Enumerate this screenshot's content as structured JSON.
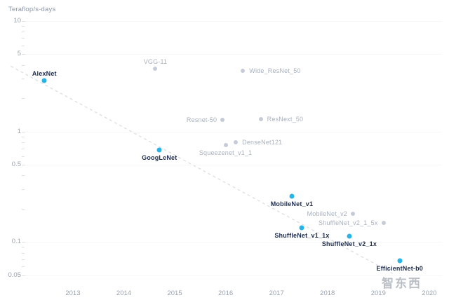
{
  "chart_data": {
    "type": "scatter",
    "title": "",
    "y_title": "Teraflop/s-days",
    "y_scale": "log",
    "grid": "faint-horizontal",
    "legend": "none",
    "xlim": [
      2012.05,
      2020.25
    ],
    "ylim": [
      0.04,
      10
    ],
    "x_ticks": [
      "2013",
      "2014",
      "2015",
      "2016",
      "2017",
      "2018",
      "2019",
      "2020"
    ],
    "x_tick_values": [
      2013,
      2014,
      2015,
      2016,
      2017,
      2018,
      2019,
      2020
    ],
    "y_major_ticks": [
      {
        "value": 10,
        "label": "10"
      },
      {
        "value": 5,
        "label": "5"
      },
      {
        "value": 1,
        "label": "1"
      },
      {
        "value": 0.5,
        "label": "0.5"
      },
      {
        "value": 0.1,
        "label": "0.1"
      },
      {
        "value": 0.05,
        "label": "0.05"
      }
    ],
    "y_minor_ticks": [
      9,
      8,
      7,
      6,
      4,
      3,
      2,
      0.9,
      0.8,
      0.7,
      0.6,
      0.4,
      0.3,
      0.2,
      0.09,
      0.08,
      0.07,
      0.06
    ],
    "trend_line": {
      "x1": 2011.78,
      "y1": 3.9,
      "x2": 2019.28,
      "y2": 0.052,
      "style": "dashed"
    },
    "points": [
      {
        "label": "AlexNet",
        "year": 2012.44,
        "value": 2.9,
        "highlighted": true,
        "label_pos": "above"
      },
      {
        "label": "VGG-11",
        "year": 2014.62,
        "value": 3.7,
        "highlighted": false,
        "label_pos": "above"
      },
      {
        "label": "Wide_ResNet_50",
        "year": 2016.34,
        "value": 3.55,
        "highlighted": false,
        "label_pos": "right"
      },
      {
        "label": "Resnet-50",
        "year": 2015.94,
        "value": 1.28,
        "highlighted": false,
        "label_pos": "left"
      },
      {
        "label": "ResNext_50",
        "year": 2016.69,
        "value": 1.3,
        "highlighted": false,
        "label_pos": "right"
      },
      {
        "label": "Squeezenet_v1_1",
        "year": 2016.0,
        "value": 0.75,
        "highlighted": false,
        "label_pos": "below"
      },
      {
        "label": "DenseNet121",
        "year": 2016.2,
        "value": 0.8,
        "highlighted": false,
        "label_pos": "right"
      },
      {
        "label": "GoogLeNet",
        "year": 2014.7,
        "value": 0.68,
        "highlighted": true,
        "label_pos": "below"
      },
      {
        "label": "MobileNet_v1",
        "year": 2017.3,
        "value": 0.26,
        "highlighted": true,
        "label_pos": "below"
      },
      {
        "label": "MobileNet_v2",
        "year": 2018.5,
        "value": 0.18,
        "highlighted": false,
        "label_pos": "left"
      },
      {
        "label": "ShuffleNet_v2_1_5x",
        "year": 2019.1,
        "value": 0.15,
        "highlighted": false,
        "label_pos": "left"
      },
      {
        "label": "ShuffleNet_v1_1x",
        "year": 2017.5,
        "value": 0.135,
        "highlighted": true,
        "label_pos": "below"
      },
      {
        "label": "ShuffleNet_v2_1x",
        "year": 2018.43,
        "value": 0.113,
        "highlighted": true,
        "label_pos": "below"
      },
      {
        "label": "EfficientNet-b0",
        "year": 2019.42,
        "value": 0.068,
        "highlighted": true,
        "label_pos": "below"
      }
    ]
  },
  "colors": {
    "accent_blue": "#29b4e8",
    "muted_dot": "#c6ccd7",
    "label_dark": "#1e2c4d",
    "label_gray": "#a9b1be",
    "axis_text": "#9aa3b2",
    "trend": "#d8dce2",
    "tick_mark": "#dde1e7",
    "grid": "#f6f7f9"
  },
  "watermark": {
    "text": "智东西"
  }
}
